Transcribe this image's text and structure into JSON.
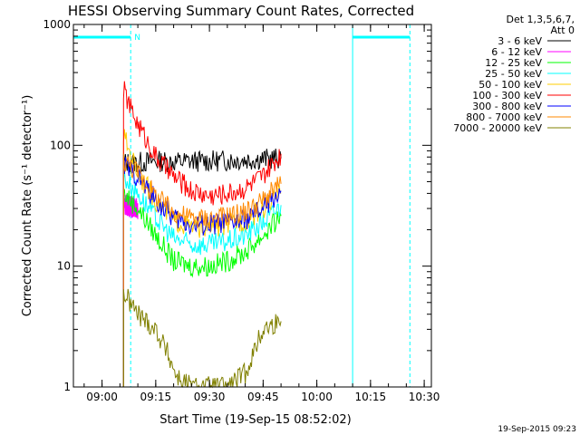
{
  "chart_data": {
    "type": "line",
    "title": "HESSI Observing Summary Count Rates, Corrected",
    "xlabel": "Start Time (19-Sep-15 08:52:02)",
    "ylabel": "Corrected Count Rate (s⁻¹ detector⁻¹)",
    "y_scale": "log",
    "ylim": [
      1,
      1000
    ],
    "xlim": [
      "08:52",
      "10:32"
    ],
    "x_ticks": [
      "09:00",
      "09:15",
      "09:30",
      "09:45",
      "10:00",
      "10:15",
      "10:30"
    ],
    "y_ticks": [
      "1",
      "10",
      "100",
      "1000"
    ],
    "grid": false,
    "legend_position": "right",
    "legend_header": [
      "Det 1,3,5,6,7,",
      "Att 0"
    ],
    "footer_date": "19-Sep-2015 09:23",
    "annotations": {
      "night_label": "N",
      "night_intervals": [
        [
          "08:52",
          "09:08"
        ],
        [
          "10:10",
          "10:26"
        ]
      ],
      "vertical_markers_dashed": [
        "09:08",
        "10:26"
      ],
      "vertical_markers_solid": [
        "08:52",
        "10:10"
      ]
    },
    "series": [
      {
        "name": "3 - 6 keV",
        "color": "#000000",
        "x": [
          "09:06",
          "09:10",
          "09:15",
          "09:20",
          "09:25",
          "09:30",
          "09:35",
          "09:40",
          "09:45",
          "09:50"
        ],
        "y": [
          72,
          72,
          74,
          73,
          74,
          74,
          75,
          76,
          77,
          78
        ]
      },
      {
        "name": "6 - 12 keV",
        "color": "#ff00ff",
        "x": [
          "09:06",
          "09:08",
          "09:10"
        ],
        "y": [
          33,
          31,
          30
        ]
      },
      {
        "name": "12 - 25 keV",
        "color": "#00ff00",
        "x": [
          "09:06",
          "09:10",
          "09:15",
          "09:20",
          "09:25",
          "09:30",
          "09:35",
          "09:40",
          "09:45",
          "09:50"
        ],
        "y": [
          40,
          30,
          18,
          11,
          10,
          10,
          11,
          13,
          18,
          26
        ]
      },
      {
        "name": "25 - 50 keV",
        "color": "#00ffff",
        "x": [
          "09:06",
          "09:10",
          "09:15",
          "09:20",
          "09:25",
          "09:30",
          "09:35",
          "09:40",
          "09:45",
          "09:50"
        ],
        "y": [
          55,
          40,
          25,
          17,
          15,
          15,
          16,
          18,
          23,
          32
        ]
      },
      {
        "name": "50 - 100 keV",
        "color": "#ffcc00",
        "x": [
          "09:06",
          "09:10",
          "09:15",
          "09:20",
          "09:25",
          "09:30",
          "09:35",
          "09:40",
          "09:45",
          "09:50"
        ],
        "y": [
          120,
          60,
          35,
          24,
          21,
          21,
          22,
          24,
          30,
          40
        ]
      },
      {
        "name": "100 - 300 keV",
        "color": "#ff0000",
        "x": [
          "09:06",
          "09:08",
          "09:10",
          "09:15",
          "09:20",
          "09:25",
          "09:30",
          "09:35",
          "09:40",
          "09:45",
          "09:50"
        ],
        "y": [
          290,
          200,
          150,
          80,
          55,
          42,
          38,
          40,
          44,
          55,
          85
        ]
      },
      {
        "name": "300 - 800 keV",
        "color": "#0000ff",
        "x": [
          "09:06",
          "09:10",
          "09:15",
          "09:20",
          "09:25",
          "09:30",
          "09:35",
          "09:40",
          "09:45",
          "09:50"
        ],
        "y": [
          70,
          55,
          35,
          25,
          22,
          22,
          23,
          24,
          30,
          42
        ]
      },
      {
        "name": "800 - 7000 keV",
        "color": "#ff8800",
        "x": [
          "09:06",
          "09:10",
          "09:15",
          "09:20",
          "09:25",
          "09:30",
          "09:35",
          "09:40",
          "09:45",
          "09:50"
        ],
        "y": [
          75,
          60,
          38,
          28,
          25,
          25,
          26,
          28,
          35,
          48
        ]
      },
      {
        "name": "7000 - 20000 keV",
        "color": "#808000",
        "x": [
          "09:06",
          "09:10",
          "09:15",
          "09:18",
          "09:21",
          "09:25",
          "09:30",
          "09:35",
          "09:40",
          "09:45",
          "09:50"
        ],
        "y": [
          6,
          4,
          3,
          2,
          1.2,
          1,
          1,
          1,
          1.3,
          3,
          3.5
        ]
      }
    ]
  }
}
